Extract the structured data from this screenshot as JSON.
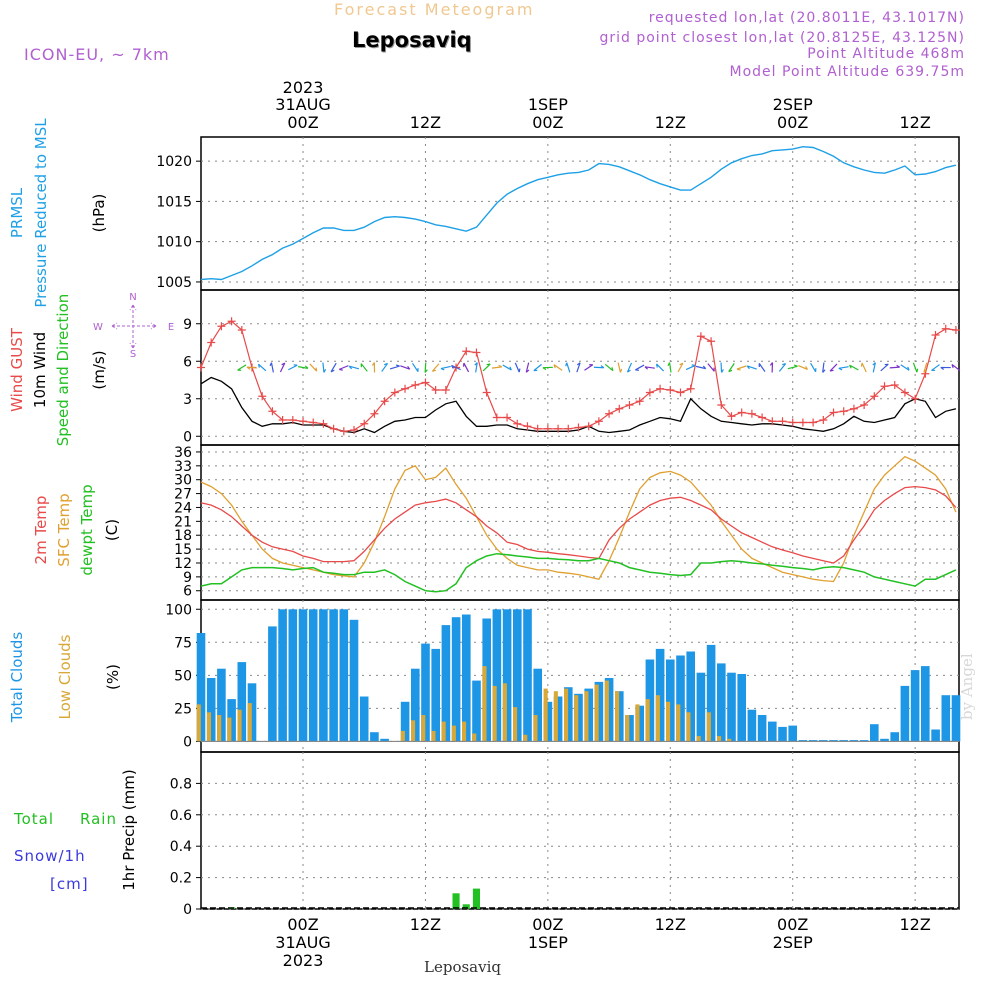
{
  "header": {
    "title_faded": "Forecast Meteogram",
    "location": "Leposaviq",
    "model": "ICON-EU, ~ 7km",
    "requested": "requested lon,lat (20.8011E, 43.1017N)",
    "gridpoint": "grid point closest lon,lat (20.8125E, 43.125N)",
    "point_alt": "Point Altitude 468m",
    "model_alt": "Model Point Altitude 639.75m",
    "footer_location": "Leposaviq",
    "credit": "by Angel"
  },
  "time_axis": {
    "top_year": "2023",
    "labels": [
      {
        "h": 0,
        "line1": "31AUG",
        "line2": "00Z"
      },
      {
        "h": 12,
        "line1": "",
        "line2": "12Z"
      },
      {
        "h": 24,
        "line1": "1SEP",
        "line2": "00Z"
      },
      {
        "h": 36,
        "line1": "",
        "line2": "12Z"
      },
      {
        "h": 48,
        "line1": "2SEP",
        "line2": "00Z"
      },
      {
        "h": 60,
        "line1": "",
        "line2": "12Z"
      }
    ],
    "bottom_labels": [
      {
        "h": 0,
        "a": "00Z",
        "b": "31AUG",
        "c": "2023"
      },
      {
        "h": 12,
        "a": "12Z",
        "b": "",
        "c": ""
      },
      {
        "h": 24,
        "a": "00Z",
        "b": "1SEP",
        "c": ""
      },
      {
        "h": 36,
        "a": "12Z",
        "b": "",
        "c": ""
      },
      {
        "h": 48,
        "a": "00Z",
        "b": "2SEP",
        "c": ""
      },
      {
        "h": 60,
        "a": "12Z",
        "b": "",
        "c": ""
      }
    ]
  },
  "panel_labels": {
    "pressure": {
      "l1": "PRMSL",
      "l2": "Pressure Reduced to MSL",
      "unit": "(hPa)"
    },
    "wind": {
      "l1": "Wind GUST",
      "l2": "10m Wind",
      "l3": "Speed and Direction",
      "unit": "(m/s)",
      "compass_n": "N",
      "compass_s": "S",
      "compass_w": "W",
      "compass_e": "E"
    },
    "temp": {
      "l1": "2m Temp",
      "l2": "SFC Temp",
      "l3": "dewpt Temp",
      "unit": "(C)"
    },
    "clouds": {
      "l1": "Total Clouds",
      "l2": "Low Clouds",
      "unit": "(%)"
    },
    "precip": {
      "l1": "Total",
      "l1b": "Rain",
      "l2": "Snow/1h",
      "l3": "[cm]",
      "unit": "1hr Precip (mm)"
    }
  },
  "colors": {
    "pressure": "#1ea0e6",
    "gust": "#e84a4a",
    "wind": "#000000",
    "temp2m": "#e84a4a",
    "sfc": "#e0a030",
    "dewpt": "#22c022",
    "total_clouds": "#1e96e6",
    "low_clouds": "#d8a838",
    "rain": "#22c022",
    "snow": "#3a3adc",
    "model": "#b060d0",
    "faded": "#f0c890"
  },
  "chart_data": [
    {
      "type": "line",
      "name": "pressure",
      "x_hours_from_31AUG_00Z": [
        -10,
        -9,
        -8,
        -7,
        -6,
        -5,
        -4,
        -3,
        -2,
        -1,
        0,
        1,
        2,
        3,
        4,
        5,
        6,
        7,
        8,
        9,
        10,
        11,
        12,
        13,
        14,
        15,
        16,
        17,
        18,
        19,
        20,
        21,
        22,
        23,
        24,
        25,
        26,
        27,
        28,
        29,
        30,
        31,
        32,
        33,
        34,
        35,
        36,
        37,
        38,
        39,
        40,
        41,
        42,
        43,
        44,
        45,
        46,
        47,
        48,
        49,
        50,
        51,
        52,
        53,
        54,
        55,
        56,
        57,
        58,
        59,
        60,
        61,
        62,
        63,
        64
      ],
      "series": [
        {
          "values": [
            1005.3,
            1005.4,
            1005.3,
            1005.8,
            1006.3,
            1007.0,
            1007.8,
            1008.4,
            1009.2,
            1009.7,
            1010.4,
            1011.1,
            1011.7,
            1011.7,
            1011.4,
            1011.4,
            1011.8,
            1012.5,
            1013.0,
            1013.1,
            1013.0,
            1012.8,
            1012.5,
            1012.1,
            1011.9,
            1011.6,
            1011.3,
            1011.8,
            1013.3,
            1014.8,
            1015.9,
            1016.6,
            1017.2,
            1017.7,
            1018.0,
            1018.3,
            1018.5,
            1018.6,
            1018.9,
            1019.7,
            1019.6,
            1019.3,
            1018.8,
            1018.3,
            1017.7,
            1017.2,
            1016.8,
            1016.4,
            1016.4,
            1017.2,
            1018.0,
            1019.0,
            1019.8,
            1020.3,
            1020.7,
            1020.9,
            1021.3,
            1021.4,
            1021.5,
            1021.8,
            1021.7,
            1021.2,
            1020.6,
            1019.8,
            1019.3,
            1018.9,
            1018.6,
            1018.5,
            1018.9,
            1019.4,
            1018.3,
            1018.4,
            1018.7,
            1019.2,
            1019.5
          ]
        }
      ],
      "ylim": [
        1004,
        1023
      ],
      "yticks": [
        1005,
        1010,
        1015,
        1020
      ]
    },
    {
      "type": "line",
      "name": "wind",
      "x_hours_from_31AUG_00Z": [
        -10,
        -9,
        -8,
        -7,
        -6,
        -5,
        -4,
        -3,
        -2,
        -1,
        0,
        1,
        2,
        3,
        4,
        5,
        6,
        7,
        8,
        9,
        10,
        11,
        12,
        13,
        14,
        15,
        16,
        17,
        18,
        19,
        20,
        21,
        22,
        23,
        24,
        25,
        26,
        27,
        28,
        29,
        30,
        31,
        32,
        33,
        34,
        35,
        36,
        37,
        38,
        39,
        40,
        41,
        42,
        43,
        44,
        45,
        46,
        47,
        48,
        49,
        50,
        51,
        52,
        53,
        54,
        55,
        56,
        57,
        58,
        59,
        60,
        61,
        62,
        63,
        64
      ],
      "series": [
        {
          "name": "Wind GUST",
          "values": [
            5.5,
            7.5,
            8.8,
            9.2,
            8.5,
            5.5,
            3.2,
            2.0,
            1.3,
            1.3,
            1.2,
            1.1,
            1.0,
            0.6,
            0.4,
            0.5,
            1.0,
            1.8,
            2.8,
            3.5,
            3.8,
            4.1,
            4.3,
            3.7,
            3.7,
            5.5,
            6.8,
            6.7,
            3.5,
            1.5,
            1.5,
            1.0,
            0.8,
            0.6,
            0.6,
            0.6,
            0.6,
            0.7,
            0.8,
            1.2,
            1.8,
            2.2,
            2.5,
            2.8,
            3.5,
            3.8,
            3.7,
            3.5,
            3.8,
            8.0,
            7.6,
            2.5,
            1.6,
            1.9,
            1.8,
            1.5,
            1.2,
            1.2,
            1.1,
            1.1,
            1.1,
            1.3,
            1.9,
            2.0,
            2.2,
            2.5,
            3.2,
            4.0,
            4.1,
            3.5,
            3.0,
            5.0,
            8.1,
            8.6,
            8.5
          ]
        },
        {
          "name": "10m Wind",
          "values": [
            4.2,
            4.7,
            4.4,
            3.8,
            2.3,
            1.2,
            0.8,
            1.0,
            1.0,
            1.1,
            0.9,
            0.9,
            0.9,
            0.6,
            0.4,
            0.3,
            0.6,
            0.3,
            0.8,
            1.2,
            1.3,
            1.5,
            1.5,
            2.1,
            2.6,
            2.8,
            1.6,
            0.8,
            0.8,
            0.9,
            0.9,
            0.6,
            0.5,
            0.4,
            0.4,
            0.4,
            0.4,
            0.5,
            0.8,
            0.4,
            0.3,
            0.4,
            0.5,
            0.9,
            1.2,
            1.5,
            1.4,
            1.2,
            3.0,
            2.2,
            1.6,
            1.2,
            1.1,
            1.0,
            0.9,
            1.0,
            1.0,
            0.9,
            0.8,
            0.6,
            0.5,
            0.4,
            0.6,
            1.0,
            1.6,
            1.2,
            1.1,
            1.3,
            1.5,
            2.6,
            3.0,
            2.8,
            1.5,
            2.0,
            2.2
          ]
        }
      ],
      "ylim": [
        -0.7,
        11.7
      ],
      "yticks": [
        0,
        3,
        6,
        9
      ]
    },
    {
      "type": "line",
      "name": "temperature",
      "x_hours_from_31AUG_00Z": [
        -10,
        -9,
        -8,
        -7,
        -6,
        -5,
        -4,
        -3,
        -2,
        -1,
        0,
        1,
        2,
        3,
        4,
        5,
        6,
        7,
        8,
        9,
        10,
        11,
        12,
        13,
        14,
        15,
        16,
        17,
        18,
        19,
        20,
        21,
        22,
        23,
        24,
        25,
        26,
        27,
        28,
        29,
        30,
        31,
        32,
        33,
        34,
        35,
        36,
        37,
        38,
        39,
        40,
        41,
        42,
        43,
        44,
        45,
        46,
        47,
        48,
        49,
        50,
        51,
        52,
        53,
        54,
        55,
        56,
        57,
        58,
        59,
        60,
        61,
        62,
        63,
        64
      ],
      "series": [
        {
          "name": "2m Temp",
          "values": [
            25.0,
            24.5,
            23.5,
            22.0,
            20.0,
            18.0,
            16.5,
            15.5,
            15.0,
            14.5,
            13.5,
            13.0,
            12.3,
            12.3,
            12.3,
            12.5,
            14.5,
            17.0,
            19.5,
            21.5,
            23.0,
            24.5,
            25.0,
            25.3,
            25.8,
            25.0,
            23.5,
            22.0,
            20.0,
            18.5,
            16.5,
            16.0,
            15.0,
            14.5,
            14.3,
            14.0,
            13.8,
            13.5,
            13.2,
            13.0,
            17.0,
            19.5,
            21.5,
            23.0,
            24.5,
            25.5,
            26.0,
            26.2,
            25.5,
            24.5,
            23.5,
            21.5,
            20.0,
            18.5,
            17.5,
            16.5,
            15.5,
            14.8,
            14.2,
            13.5,
            13.0,
            12.5,
            12.0,
            13.5,
            17.0,
            20.0,
            23.5,
            25.5,
            27.0,
            28.3,
            28.5,
            28.3,
            27.8,
            26.5,
            24.0
          ]
        },
        {
          "name": "SFC Temp",
          "values": [
            29.5,
            28.5,
            27.0,
            24.5,
            21.0,
            18.0,
            15.0,
            13.0,
            12.0,
            11.5,
            11.0,
            10.5,
            10.0,
            9.5,
            9.2,
            9.0,
            12.0,
            16.5,
            22.0,
            28.0,
            32.0,
            33.0,
            30.0,
            30.5,
            32.5,
            29.0,
            26.0,
            22.0,
            18.0,
            15.0,
            13.0,
            11.5,
            11.0,
            10.5,
            10.5,
            10.0,
            9.8,
            9.5,
            9.0,
            8.5,
            12.5,
            17.5,
            23.0,
            28.0,
            30.5,
            31.5,
            31.8,
            31.0,
            29.5,
            27.0,
            24.5,
            21.0,
            18.0,
            15.0,
            13.0,
            12.0,
            11.0,
            10.0,
            9.5,
            9.0,
            8.5,
            8.2,
            8.0,
            12.0,
            18.0,
            23.0,
            28.0,
            31.0,
            33.0,
            35.0,
            34.0,
            32.5,
            31.0,
            28.0,
            23.0
          ]
        },
        {
          "name": "dewpt Temp",
          "values": [
            7.0,
            7.5,
            7.5,
            9.0,
            10.5,
            11.0,
            11.0,
            11.0,
            10.8,
            10.5,
            10.8,
            11.0,
            10.0,
            9.8,
            9.5,
            9.5,
            10.0,
            10.0,
            10.5,
            9.5,
            8.0,
            7.0,
            6.0,
            5.8,
            6.0,
            7.5,
            11.0,
            12.5,
            13.5,
            14.0,
            13.8,
            13.5,
            13.3,
            13.0,
            13.0,
            12.8,
            12.7,
            12.5,
            12.5,
            13.0,
            12.5,
            12.0,
            11.0,
            10.5,
            10.0,
            9.8,
            9.5,
            9.3,
            9.5,
            12.0,
            12.0,
            12.3,
            12.5,
            12.3,
            12.0,
            11.8,
            11.5,
            11.3,
            11.0,
            10.8,
            10.5,
            11.0,
            11.2,
            11.0,
            10.5,
            10.0,
            9.0,
            8.5,
            8.0,
            7.5,
            7.0,
            8.5,
            8.5,
            9.5,
            10.5
          ]
        }
      ],
      "ylim": [
        4,
        37.5
      ],
      "yticks": [
        6,
        9,
        12,
        15,
        18,
        21,
        24,
        27,
        30,
        33,
        36
      ]
    },
    {
      "type": "bar",
      "name": "clouds",
      "x_hours_from_31AUG_00Z": [
        -10,
        -9,
        -8,
        -7,
        -6,
        -5,
        -4,
        -3,
        -2,
        -1,
        0,
        1,
        2,
        3,
        4,
        5,
        6,
        7,
        8,
        9,
        10,
        11,
        12,
        13,
        14,
        15,
        16,
        17,
        18,
        19,
        20,
        21,
        22,
        23,
        24,
        25,
        26,
        27,
        28,
        29,
        30,
        31,
        32,
        33,
        34,
        35,
        36,
        37,
        38,
        39,
        40,
        41,
        42,
        43,
        44,
        45,
        46,
        47,
        48,
        49,
        50,
        51,
        52,
        53,
        54,
        55,
        56,
        57,
        58,
        59,
        60,
        61,
        62,
        63,
        64
      ],
      "series": [
        {
          "name": "Total Clouds",
          "values": [
            82,
            48,
            55,
            32,
            60,
            44,
            0,
            87,
            100,
            100,
            100,
            100,
            100,
            100,
            100,
            92,
            34,
            7,
            2,
            0,
            30,
            55,
            74,
            70,
            88,
            94,
            96,
            46,
            93,
            100,
            100,
            100,
            100,
            55,
            30,
            34,
            41,
            36,
            40,
            45,
            48,
            38,
            20,
            27,
            62,
            70,
            62,
            65,
            68,
            52,
            73,
            59,
            52,
            51,
            24,
            20,
            15,
            11,
            12,
            1,
            1,
            1,
            1,
            1,
            1,
            1,
            13,
            2,
            7,
            42,
            54,
            57,
            9,
            35,
            35
          ]
        },
        {
          "name": "Low Clouds",
          "values": [
            28,
            22,
            20,
            18,
            24,
            29,
            0,
            0,
            0,
            0,
            0,
            0,
            0,
            0,
            0,
            0,
            0,
            0,
            0,
            0,
            8,
            16,
            20,
            8,
            15,
            12,
            15,
            6,
            57,
            42,
            44,
            26,
            5,
            20,
            40,
            38,
            40,
            35,
            38,
            43,
            46,
            38,
            20,
            28,
            32,
            35,
            30,
            28,
            22,
            4,
            22,
            4,
            2,
            0,
            0,
            0,
            0,
            0,
            0,
            0,
            0,
            0,
            0,
            0,
            0,
            0,
            0,
            0,
            0,
            0,
            0,
            0,
            0,
            0,
            0
          ]
        }
      ],
      "ylim": [
        -8,
        107
      ],
      "yticks": [
        0,
        25,
        50,
        75,
        100
      ]
    },
    {
      "type": "bar",
      "name": "precipitation",
      "ylabel": "1hr Precip (mm)",
      "x_hours_from_31AUG_00Z": [
        -7,
        15,
        16,
        17
      ],
      "series": [
        {
          "name": "Total Rain",
          "values": [
            0.01,
            0.1,
            0.03,
            0.13
          ]
        }
      ],
      "ylim": [
        0,
        1.0
      ],
      "yticks": [
        0,
        0.2,
        0.4,
        0.6,
        0.8
      ]
    }
  ]
}
